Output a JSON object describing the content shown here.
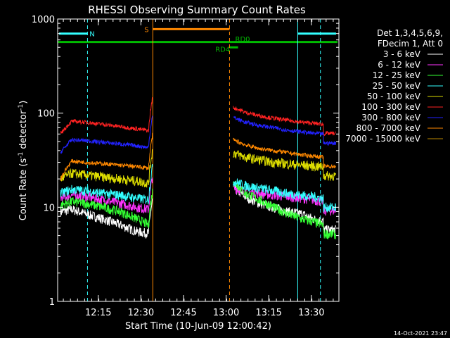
{
  "chart_data": {
    "type": "line",
    "title": "RHESSI Observing Summary Count Rates",
    "xlabel": "Start Time (10-Jun-09 12:00:42)",
    "ylabel_main": "Count Rate (s",
    "ylabel_sup1": "-1",
    "ylabel_mid": " detector",
    "ylabel_sup2": "-1",
    "ylabel_end": ")",
    "x_range_minutes": [
      0,
      99
    ],
    "y_scale": "log",
    "ylim": [
      1,
      1000
    ],
    "x_ticks": [
      {
        "t": 14.3,
        "label": "12:15"
      },
      {
        "t": 29.3,
        "label": "12:30"
      },
      {
        "t": 44.3,
        "label": "12:45"
      },
      {
        "t": 59.3,
        "label": "13:00"
      },
      {
        "t": 74.3,
        "label": "13:15"
      },
      {
        "t": 89.3,
        "label": "13:30"
      }
    ],
    "y_ticks": [
      {
        "v": 1,
        "label": "1"
      },
      {
        "v": 10,
        "label": "10"
      },
      {
        "v": 100,
        "label": "100"
      },
      {
        "v": 1000,
        "label": "1000"
      }
    ],
    "legend": {
      "placement": "right",
      "header": [
        "Det 1,3,4,5,6,9,",
        "FDecim 1, Att 0"
      ]
    },
    "series": [
      {
        "name": "3 - 6 keV",
        "color": "#ffffff",
        "seg1": [
          9,
          9.5,
          8.5,
          7.5,
          6.5,
          5.5,
          5.3
        ],
        "seg2": [
          16,
          13,
          11,
          10,
          9,
          8.5,
          7.5,
          7.2
        ]
      },
      {
        "name": "6 - 12 keV",
        "color": "#ff33ff",
        "seg1": [
          12.5,
          13.5,
          13,
          12,
          11,
          10,
          9.5
        ],
        "seg2": [
          16,
          15,
          14,
          13.5,
          13,
          12.5,
          12,
          11.5
        ]
      },
      {
        "name": "12 - 25 keV",
        "color": "#33ff33",
        "seg1": [
          10.5,
          11.5,
          11,
          10,
          9,
          7.5,
          6.5
        ],
        "seg2": [
          19,
          14,
          12,
          10,
          8.5,
          7.5,
          7,
          6.5
        ]
      },
      {
        "name": "25 - 50 keV",
        "color": "#33ffff",
        "seg1": [
          14,
          15.5,
          15,
          14,
          13.5,
          12.5,
          12
        ],
        "seg2": [
          19,
          17,
          16,
          15,
          14,
          13.5,
          13,
          12.5
        ]
      },
      {
        "name": "50 - 100 keV",
        "color": "#dddd00",
        "seg1": [
          20,
          23,
          22,
          21,
          20,
          19,
          18
        ],
        "seg2": [
          38,
          34,
          32,
          30,
          29,
          28,
          27.5,
          27
        ]
      },
      {
        "name": "100 - 300 keV",
        "color": "#ff2222",
        "seg1": [
          60,
          82,
          80,
          76,
          72,
          68,
          65
        ],
        "seg2": [
          115,
          102,
          94,
          88,
          84,
          80,
          78,
          76
        ]
      },
      {
        "name": "300 - 800 keV",
        "color": "#2222ff",
        "seg1": [
          38,
          52,
          51,
          49,
          47,
          45,
          43
        ],
        "seg2": [
          90,
          80,
          74,
          70,
          66,
          63,
          61,
          60
        ]
      },
      {
        "name": "800 - 7000 keV",
        "color": "#ff8800",
        "seg1": [
          20,
          31,
          30,
          29,
          28,
          27,
          26
        ],
        "seg2": [
          52,
          46,
          42,
          40,
          38,
          36,
          35,
          34
        ]
      },
      {
        "name": "7000 - 15000 keV",
        "color": "#bb8800",
        "seg1": [],
        "seg2": []
      }
    ],
    "segment_times": {
      "seg1": [
        1.0,
        5.0,
        10.0,
        16.0,
        22.0,
        28.0,
        32.0
      ],
      "seg2": [
        61.8,
        66.0,
        71.0,
        76.0,
        81.0,
        86.0,
        90.0,
        93.5
      ]
    },
    "after_attenuator": {
      "seg1_end_factor": 0.72,
      "seg2_end_factor": 0.8
    },
    "flags": [
      {
        "label": "N",
        "color": "#33ffff",
        "bars": [
          [
            0.5,
            10.5,
            700
          ],
          [
            84.5,
            98,
            700
          ]
        ],
        "label_t": 11.2,
        "label_y": 700
      },
      {
        "label": "S",
        "color": "#ff8800",
        "bars": [
          [
            33.5,
            60.5,
            780
          ]
        ],
        "label_t": 30.5,
        "label_y": 780
      },
      {
        "label": "RD0",
        "color": "#00bb00",
        "bars": [
          [
            0,
            98.5,
            570
          ]
        ],
        "label_t": 62.5,
        "label_y": 620
      },
      {
        "label": "RD4",
        "color": "#00bb00",
        "bars": [
          [
            60.5,
            63.5,
            500
          ]
        ],
        "label_t": 55.5,
        "label_y": 480
      }
    ],
    "vlines": [
      {
        "t": 33.5,
        "color": "#ff8800",
        "dashed": false
      },
      {
        "t": 60.5,
        "color": "#ff8800",
        "dashed": true
      },
      {
        "t": 10.5,
        "color": "#33ffff",
        "dashed": true
      },
      {
        "t": 84.5,
        "color": "#33ffff",
        "dashed": false
      },
      {
        "t": 92.5,
        "color": "#33ffff",
        "dashed": true
      }
    ],
    "footer_date": "14-Oct-2021 23:47"
  }
}
